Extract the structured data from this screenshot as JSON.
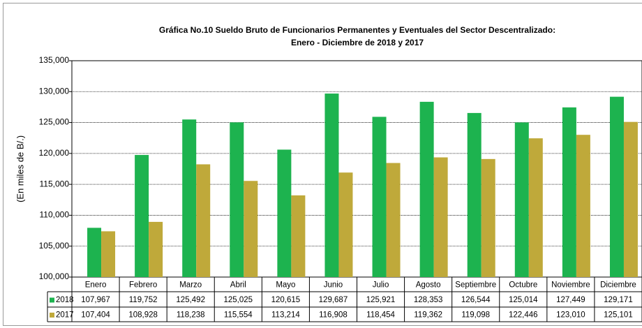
{
  "chart_data": {
    "type": "bar",
    "title": "Gráfica No.10 Sueldo Bruto de Funcionarios Permanentes y Eventuales del Sector Descentralizado:",
    "subtitle": "Enero - Diciembre de 2018 y 2017",
    "y_label": "(En miles de B/.)",
    "categories": [
      "Enero",
      "Febrero",
      "Marzo",
      "Abril",
      "Mayo",
      "Junio",
      "Julio",
      "Agosto",
      "Septiembre",
      "Octubre",
      "Noviembre",
      "Diciembre"
    ],
    "series": [
      {
        "name": "2018",
        "color": "#1db34f",
        "values": [
          107967,
          119752,
          125492,
          125025,
          120615,
          129687,
          125921,
          128353,
          126544,
          125014,
          127449,
          129171
        ],
        "value_labels": [
          "107,967",
          "119,752",
          "125,492",
          "125,025",
          "120,615",
          "129,687",
          "125,921",
          "128,353",
          "126,544",
          "125,014",
          "127,449",
          "129,171"
        ]
      },
      {
        "name": "2017",
        "color": "#bfa93a",
        "values": [
          107404,
          108928,
          118238,
          115554,
          113214,
          116908,
          118454,
          119362,
          119098,
          122446,
          123010,
          125101
        ],
        "value_labels": [
          "107,404",
          "108,928",
          "118,238",
          "115,554",
          "113,214",
          "116,908",
          "118,454",
          "119,362",
          "119,098",
          "122,446",
          "123,010",
          "125,101"
        ]
      }
    ],
    "ylim": [
      100000,
      135000
    ],
    "yticks": [
      {
        "value": 100000,
        "label": "100,000"
      },
      {
        "value": 105000,
        "label": "105,000"
      },
      {
        "value": 110000,
        "label": "110,000"
      },
      {
        "value": 115000,
        "label": "115,000"
      },
      {
        "value": 120000,
        "label": "120,000"
      },
      {
        "value": 125000,
        "label": "125,000"
      },
      {
        "value": 130000,
        "label": "130,000"
      },
      {
        "value": 135000,
        "label": "135,000"
      }
    ],
    "grid": true
  }
}
